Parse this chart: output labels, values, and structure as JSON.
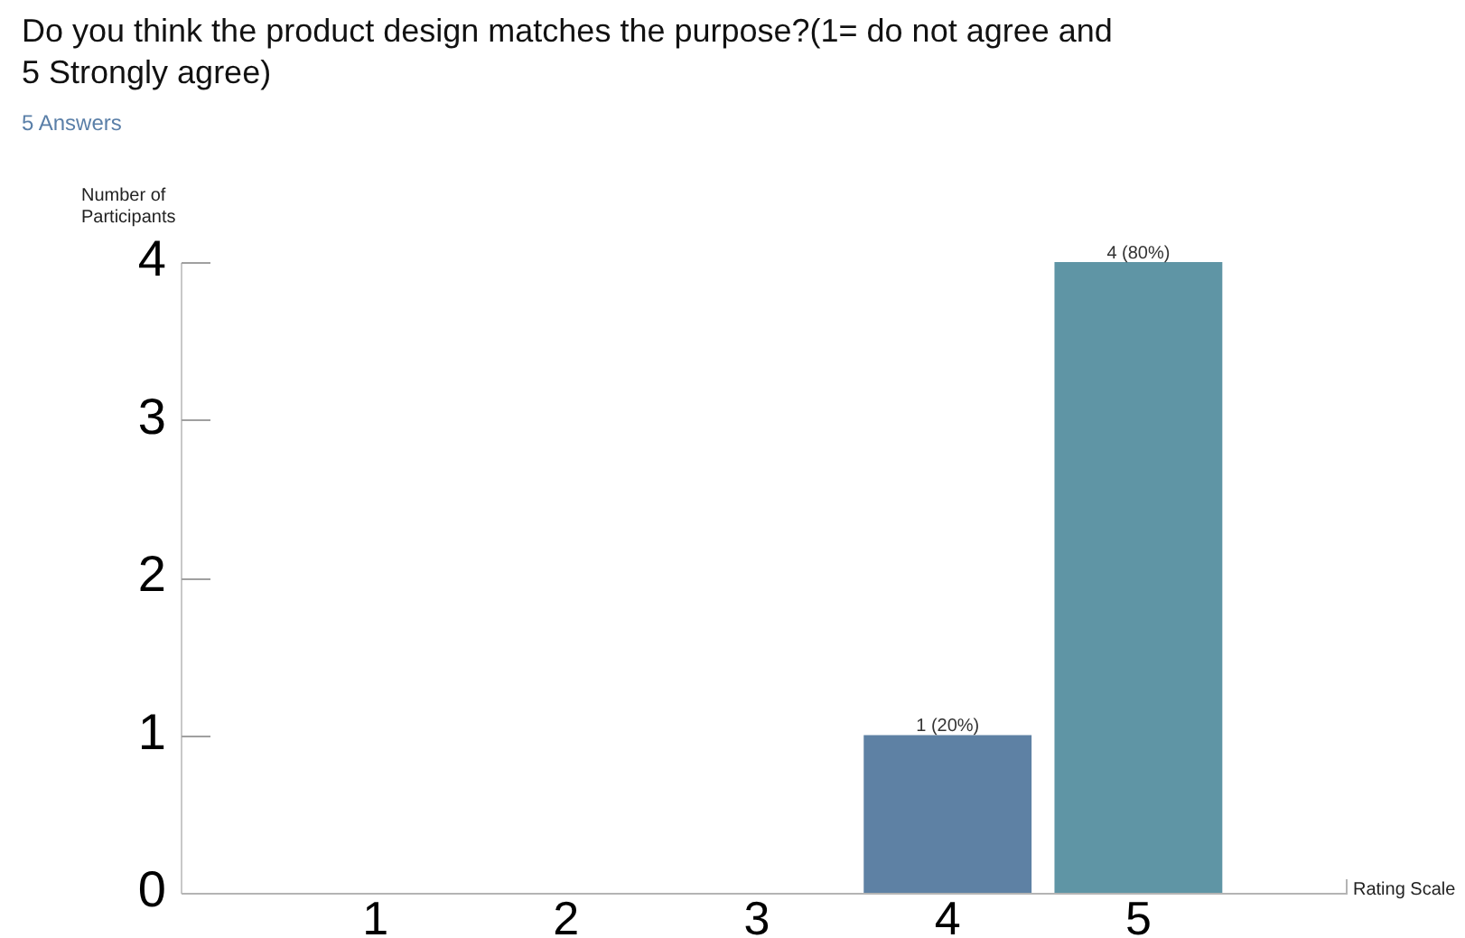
{
  "chart_data": {
    "type": "bar",
    "title": "Do you think the product design matches the purpose?(1= do not agree and 5 Strongly agree)",
    "subtitle": "5 Answers",
    "xlabel": "Rating Scale",
    "ylabel": "Number of Participants",
    "categories": [
      "1",
      "2",
      "3",
      "4",
      "5"
    ],
    "values": [
      0,
      0,
      0,
      1,
      4
    ],
    "colors": [
      null,
      null,
      null,
      "#5e81a4",
      "#5f95a5"
    ],
    "value_labels": [
      null,
      null,
      null,
      "1 (20%)",
      "4 (80%)"
    ],
    "ylim": [
      0,
      4
    ],
    "yticks": [
      0,
      1,
      2,
      3,
      4
    ]
  }
}
